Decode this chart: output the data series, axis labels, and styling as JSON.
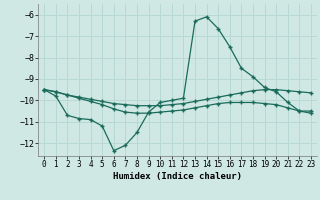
{
  "xlabel": "Humidex (Indice chaleur)",
  "ylabel": "",
  "bg_color": "#cfe8e4",
  "grid_color": "#b8d8d4",
  "line_color": "#1a6b5a",
  "xlim": [
    -0.5,
    23.5
  ],
  "ylim": [
    -12.6,
    -5.5
  ],
  "yticks": [
    -12,
    -11,
    -10,
    -9,
    -8,
    -7,
    -6
  ],
  "xticks": [
    0,
    1,
    2,
    3,
    4,
    5,
    6,
    7,
    8,
    9,
    10,
    11,
    12,
    13,
    14,
    15,
    16,
    17,
    18,
    19,
    20,
    21,
    22,
    23
  ],
  "series1_x": [
    0,
    1,
    2,
    3,
    4,
    5,
    6,
    7,
    8,
    9,
    10,
    11,
    12,
    13,
    14,
    15,
    16,
    17,
    18,
    19,
    20,
    21,
    22,
    23
  ],
  "series1_y": [
    -9.5,
    -9.8,
    -10.7,
    -10.85,
    -10.9,
    -11.2,
    -12.35,
    -12.1,
    -11.5,
    -10.55,
    -10.1,
    -10.0,
    -9.9,
    -6.3,
    -6.1,
    -6.65,
    -7.5,
    -8.5,
    -8.9,
    -9.4,
    -9.6,
    -10.1,
    -10.5,
    -10.5
  ],
  "series2_x": [
    0,
    1,
    2,
    3,
    4,
    5,
    6,
    7,
    8,
    9,
    10,
    11,
    12,
    13,
    14,
    15,
    16,
    17,
    18,
    19,
    20,
    21,
    22,
    23
  ],
  "series2_y": [
    -9.5,
    -9.6,
    -9.75,
    -9.85,
    -9.95,
    -10.05,
    -10.15,
    -10.2,
    -10.25,
    -10.25,
    -10.25,
    -10.2,
    -10.15,
    -10.05,
    -9.95,
    -9.85,
    -9.75,
    -9.65,
    -9.55,
    -9.5,
    -9.5,
    -9.55,
    -9.6,
    -9.65
  ],
  "series3_x": [
    0,
    1,
    2,
    3,
    4,
    5,
    6,
    7,
    8,
    9,
    10,
    11,
    12,
    13,
    14,
    15,
    16,
    17,
    18,
    19,
    20,
    21,
    22,
    23
  ],
  "series3_y": [
    -9.5,
    -9.6,
    -9.75,
    -9.9,
    -10.05,
    -10.2,
    -10.4,
    -10.55,
    -10.6,
    -10.6,
    -10.55,
    -10.5,
    -10.45,
    -10.35,
    -10.25,
    -10.15,
    -10.1,
    -10.1,
    -10.1,
    -10.15,
    -10.2,
    -10.35,
    -10.5,
    -10.6
  ]
}
